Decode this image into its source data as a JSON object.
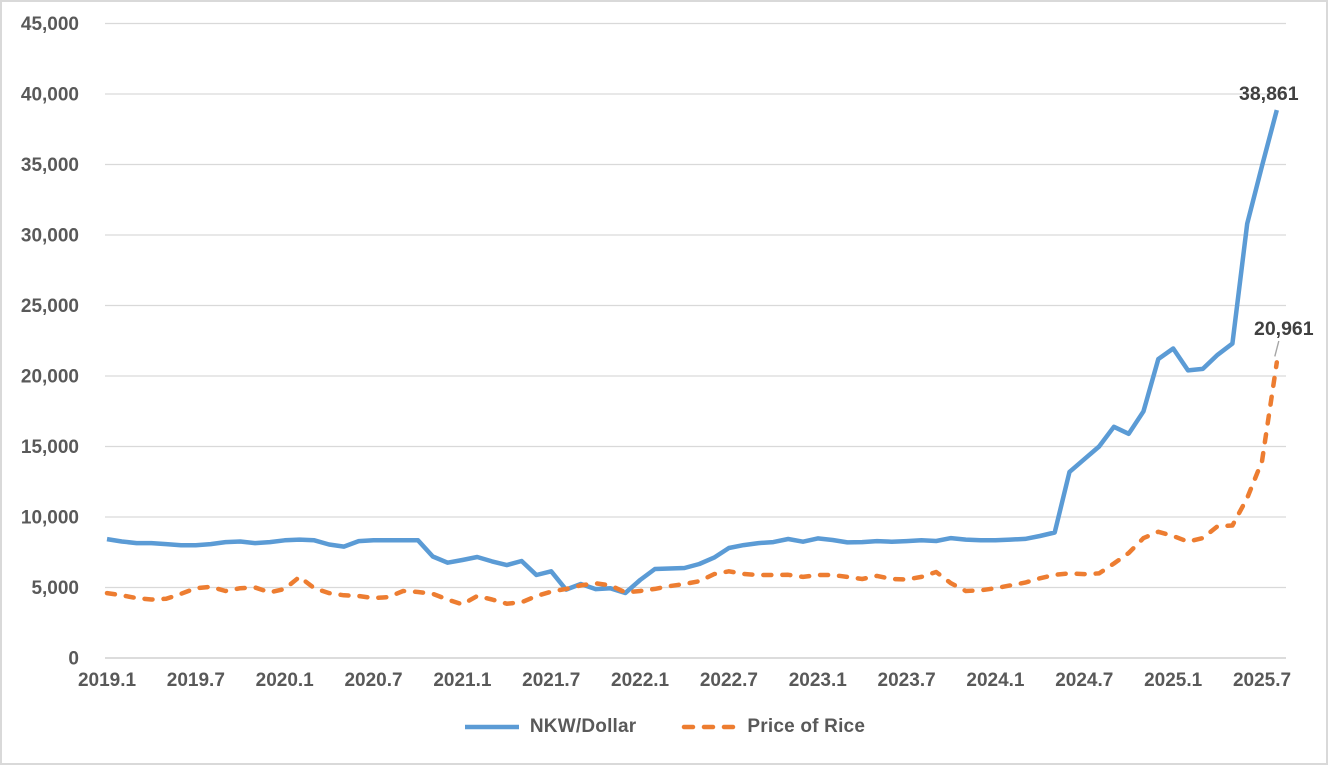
{
  "chart": {
    "background": "#ffffff",
    "border_color": "#d9d9d9"
  },
  "chart_data": {
    "type": "line",
    "title": "",
    "xlabel": "",
    "ylabel": "",
    "grid": true,
    "legend_position": "bottom",
    "ylim": [
      0,
      45000
    ],
    "y_ticks": [
      0,
      5000,
      10000,
      15000,
      20000,
      25000,
      30000,
      35000,
      40000,
      45000
    ],
    "x_tick_labels": [
      "2019.1",
      "2019.7",
      "2020.1",
      "2020.7",
      "2021.1",
      "2021.7",
      "2022.1",
      "2022.7",
      "2023.1",
      "2023.7",
      "2024.1",
      "2024.7",
      "2025.1",
      "2025.7"
    ],
    "points_per_tick": 6,
    "points_count": 80,
    "x_description": "monthly points from 2019.1 through 2025.8",
    "grid_color": "#d9d9d9",
    "zero_line_color": "#c8c8c8",
    "axis_label_color": "#595959",
    "data_label_color": "#404040",
    "leader_line_color": "#a6a6a6",
    "series": [
      {
        "name": "NKW/Dollar",
        "color": "#5b9bd5",
        "line_style": "solid",
        "end_label": "38,861",
        "values": [
          8430,
          8260,
          8150,
          8150,
          8080,
          8000,
          8000,
          8080,
          8220,
          8260,
          8150,
          8220,
          8350,
          8400,
          8350,
          8050,
          7900,
          8290,
          8350,
          8350,
          8350,
          8350,
          7200,
          6760,
          6950,
          7160,
          6850,
          6590,
          6880,
          5890,
          6150,
          4850,
          5250,
          4890,
          4940,
          4610,
          5530,
          6310,
          6350,
          6380,
          6670,
          7120,
          7800,
          8010,
          8150,
          8220,
          8440,
          8250,
          8480,
          8370,
          8200,
          8220,
          8290,
          8250,
          8290,
          8350,
          8300,
          8500,
          8400,
          8350,
          8350,
          8400,
          8450,
          8650,
          8900,
          13200,
          14100,
          15000,
          16400,
          15900,
          17500,
          21200,
          21950,
          20400,
          20500,
          21500,
          22300,
          30800,
          34900,
          38861
        ]
      },
      {
        "name": "Price of Rice",
        "color": "#ed7d31",
        "line_style": "dashed",
        "end_label": "20,961",
        "values": [
          4600,
          4450,
          4250,
          4150,
          4200,
          4550,
          4950,
          5050,
          4750,
          4950,
          5000,
          4650,
          4900,
          5750,
          4950,
          4600,
          4450,
          4400,
          4250,
          4320,
          4750,
          4680,
          4550,
          4150,
          3800,
          4400,
          4150,
          3850,
          3950,
          4400,
          4700,
          4900,
          5150,
          5300,
          5150,
          4650,
          4750,
          4900,
          5100,
          5250,
          5450,
          5950,
          6150,
          5960,
          5890,
          5890,
          5900,
          5750,
          5890,
          5890,
          5750,
          5600,
          5820,
          5600,
          5570,
          5750,
          6100,
          5300,
          4750,
          4800,
          4950,
          5150,
          5350,
          5650,
          5900,
          6000,
          5950,
          6000,
          6700,
          7450,
          8500,
          8950,
          8650,
          8250,
          8500,
          9350,
          9400,
          11350,
          13950,
          20961
        ]
      }
    ]
  }
}
